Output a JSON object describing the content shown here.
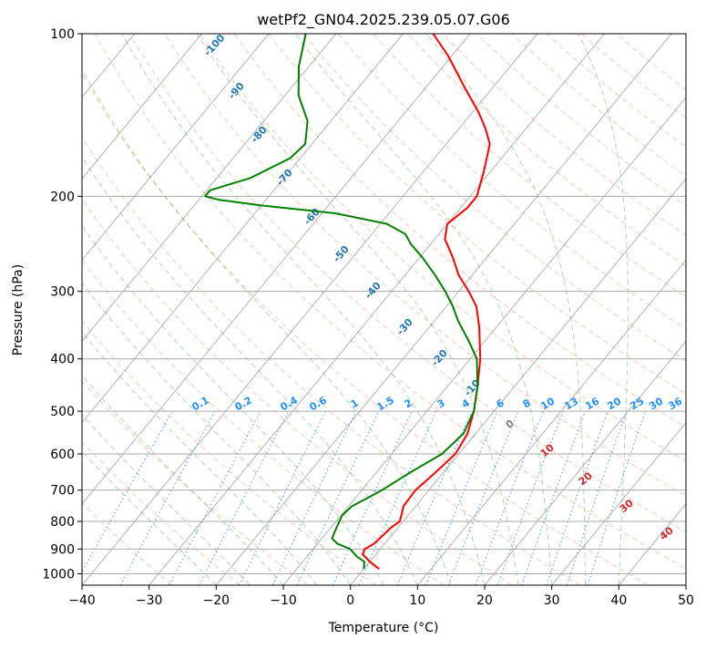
{
  "chart_data": {
    "type": "line",
    "subtype": "skew-t log-p diagram",
    "title": "wetPf2_GN04.2025.239.05.07.G06",
    "xlabel": "Temperature (°C)",
    "ylabel": "Pressure (hPa)",
    "xlim": [
      -40,
      50
    ],
    "ylim_hPa": [
      1050,
      100
    ],
    "y_scale": "log",
    "x_ticks": [
      "−40",
      "−30",
      "−20",
      "−10",
      "0",
      "10",
      "20",
      "30",
      "40",
      "50"
    ],
    "y_ticks": [
      "100",
      "200",
      "300",
      "400",
      "500",
      "600",
      "700",
      "800",
      "900",
      "1000"
    ],
    "grid": true,
    "series": [
      {
        "role": "temperature",
        "color": "#ff0000",
        "points_p_T": [
          [
            980,
            2.3
          ],
          [
            950,
            0.0
          ],
          [
            920,
            -2.0
          ],
          [
            900,
            -2.3
          ],
          [
            880,
            -1.6
          ],
          [
            850,
            -1.3
          ],
          [
            820,
            -1.0
          ],
          [
            800,
            -0.5
          ],
          [
            780,
            -1.0
          ],
          [
            750,
            -1.8
          ],
          [
            700,
            -2.0
          ],
          [
            650,
            -1.2
          ],
          [
            600,
            -0.5
          ],
          [
            550,
            -1.2
          ],
          [
            500,
            -3.0
          ],
          [
            450,
            -5.5
          ],
          [
            400,
            -8.5
          ],
          [
            350,
            -12.5
          ],
          [
            320,
            -15.5
          ],
          [
            300,
            -18.5
          ],
          [
            280,
            -22.0
          ],
          [
            260,
            -25.0
          ],
          [
            240,
            -28.5
          ],
          [
            225,
            -30.0
          ],
          [
            210,
            -29.0
          ],
          [
            200,
            -29.0
          ],
          [
            180,
            -31.0
          ],
          [
            160,
            -33.5
          ],
          [
            150,
            -36.0
          ],
          [
            140,
            -39.0
          ],
          [
            125,
            -44.5
          ],
          [
            110,
            -50.5
          ],
          [
            100,
            -55.5
          ]
        ]
      },
      {
        "role": "dewpoint",
        "color": "#008000",
        "points_p_Td": [
          [
            980,
            0.0
          ],
          [
            950,
            -0.8
          ],
          [
            930,
            -2.5
          ],
          [
            900,
            -4.5
          ],
          [
            880,
            -7.0
          ],
          [
            860,
            -8.5
          ],
          [
            830,
            -9.0
          ],
          [
            800,
            -9.5
          ],
          [
            780,
            -9.8
          ],
          [
            750,
            -9.5
          ],
          [
            730,
            -8.5
          ],
          [
            700,
            -7.0
          ],
          [
            650,
            -5.0
          ],
          [
            600,
            -2.5
          ],
          [
            550,
            -1.8
          ],
          [
            500,
            -3.0
          ],
          [
            450,
            -5.5
          ],
          [
            400,
            -9.0
          ],
          [
            370,
            -12.5
          ],
          [
            340,
            -16.5
          ],
          [
            320,
            -19.0
          ],
          [
            300,
            -22.0
          ],
          [
            280,
            -25.5
          ],
          [
            260,
            -29.5
          ],
          [
            245,
            -33.0
          ],
          [
            235,
            -35.0
          ],
          [
            225,
            -39.0
          ],
          [
            215,
            -48.0
          ],
          [
            208,
            -60.0
          ],
          [
            203,
            -67.0
          ],
          [
            200,
            -69.5
          ],
          [
            195,
            -69.5
          ],
          [
            185,
            -65.0
          ],
          [
            170,
            -61.5
          ],
          [
            160,
            -61.0
          ],
          [
            145,
            -63.5
          ],
          [
            130,
            -68.0
          ],
          [
            115,
            -71.5
          ],
          [
            100,
            -74.5
          ]
        ]
      }
    ],
    "reference_lines": {
      "isotherm_step_C": 10,
      "dry_adiabat_color": "#ff7f50",
      "moist_adiabat_color": "#2ca02c",
      "mixing_ratio_color": "#1e90ff",
      "isotherm_color": "#808080"
    },
    "annotations": {
      "altitude_labels": [
        "-100",
        "-90",
        "-80",
        "-70",
        "-60",
        "-50",
        "-40",
        "-30",
        "-20",
        "-10"
      ],
      "mixing_ratio_labels": [
        "0.1",
        "0.2",
        "0.4",
        "0.6",
        "1",
        "1.5",
        "2",
        "3",
        "4",
        "6",
        "8",
        "10",
        "13",
        "16",
        "20",
        "25",
        "30",
        "36"
      ],
      "red_labels": [
        "10",
        "20",
        "30",
        "40"
      ],
      "gray_labels": [
        "0"
      ]
    }
  }
}
